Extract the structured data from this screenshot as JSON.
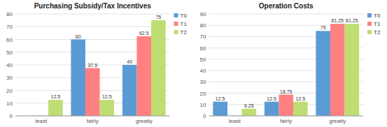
{
  "chart_data": [
    {
      "type": "bar",
      "title": "Purchasing Subsidy/Tax Incentives",
      "categories": [
        "least",
        "fairly",
        "greatly"
      ],
      "series": [
        {
          "name": "T0",
          "color": "#5B9BD5",
          "values": [
            0,
            60,
            40
          ]
        },
        {
          "name": "T1",
          "color": "#FF8080",
          "values": [
            0,
            37.5,
            62.5
          ]
        },
        {
          "name": "T2",
          "color": "#BEDD72",
          "values": [
            12.5,
            12.5,
            75
          ]
        }
      ],
      "ylim": [
        0,
        80
      ],
      "yticks": [
        0,
        10,
        20,
        30,
        40,
        50,
        60,
        70,
        80
      ],
      "grid": true,
      "legend": "right",
      "data_labels": true
    },
    {
      "type": "bar",
      "title": "Operation Costs",
      "categories": [
        "least",
        "fairly",
        "greatly"
      ],
      "series": [
        {
          "name": "T0",
          "color": "#5B9BD5",
          "values": [
            12.5,
            12.5,
            75
          ]
        },
        {
          "name": "T1",
          "color": "#FF8080",
          "values": [
            0,
            18.75,
            81.25
          ]
        },
        {
          "name": "T2",
          "color": "#BEDD72",
          "values": [
            6.25,
            12.5,
            81.25
          ]
        }
      ],
      "ylim": [
        0,
        90
      ],
      "yticks": [
        0,
        10,
        20,
        30,
        40,
        50,
        60,
        70,
        80,
        90
      ],
      "grid": true,
      "legend": "right",
      "data_labels": true
    }
  ]
}
